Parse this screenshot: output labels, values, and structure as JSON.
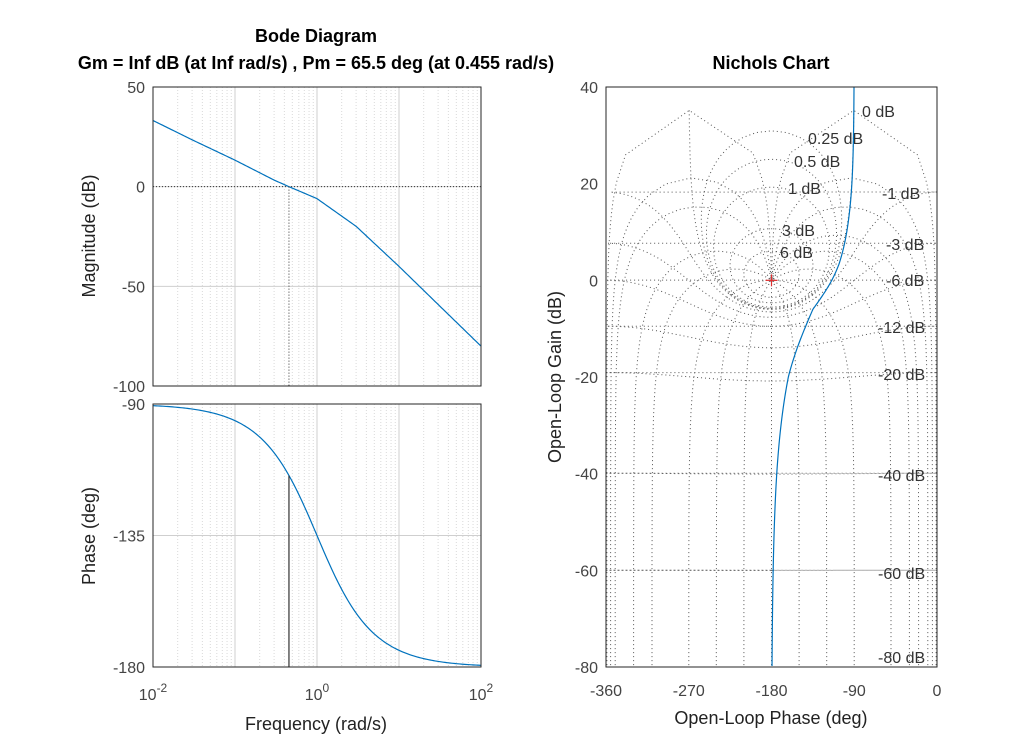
{
  "chart_data": [
    {
      "type": "line",
      "title": "Bode Diagram",
      "subtitle": "Gm = Inf dB (at Inf rad/s) ,  Pm = 65.5 deg (at 0.455 rad/s)",
      "xlabel": "Frequency  (rad/s)",
      "x_scale": "log",
      "xlim": [
        0.01,
        100
      ],
      "x_ticks": [
        {
          "base": "10",
          "exp": "-2"
        },
        {
          "base": "10",
          "exp": "0"
        },
        {
          "base": "10",
          "exp": "2"
        }
      ],
      "panels": [
        {
          "name": "magnitude",
          "ylabel": "Magnitude (dB)",
          "ylim": [
            -100,
            50
          ],
          "y_ticks": [
            "50",
            "0",
            "-50",
            "-100"
          ],
          "series": [
            {
              "values_x": [
                0.01,
                0.03,
                0.1,
                0.3,
                0.455,
                1,
                3,
                10,
                30,
                100
              ],
              "values_y": [
                33.2,
                23.5,
                13.3,
                3.3,
                0,
                -6.0,
                -19.9,
                -40.0,
                -59.1,
                -80.0
              ]
            }
          ]
        },
        {
          "name": "phase",
          "ylabel": "Phase (deg)",
          "ylim": [
            -180,
            -90
          ],
          "y_ticks": [
            "-90",
            "-135",
            "-180"
          ],
          "series": [
            {
              "values_x": [
                0.01,
                0.1,
                0.455,
                1,
                10,
                100
              ],
              "values_y": [
                -90.6,
                -95.7,
                -114.5,
                -135,
                -174.3,
                -179.4
              ]
            }
          ]
        }
      ],
      "crossover": {
        "frequency": 0.455,
        "phase": -114.5
      },
      "grid": true,
      "colors": {
        "curve": "#0072bd",
        "axes": "#262626"
      }
    },
    {
      "type": "line",
      "title": "Nichols Chart",
      "xlabel": "Open-Loop Phase (deg)",
      "ylabel": "Open-Loop Gain (dB)",
      "xlim": [
        -360,
        0
      ],
      "ylim": [
        -80,
        40
      ],
      "x_ticks": [
        "-360",
        "-270",
        "-180",
        "-90",
        "0"
      ],
      "y_ticks": [
        "40",
        "20",
        "0",
        "-20",
        "-40",
        "-60",
        "-80"
      ],
      "grid_labels": [
        "0 dB",
        "0.25 dB",
        "0.5 dB",
        "1 dB",
        "-1 dB",
        "3 dB",
        "6 dB",
        "-3 dB",
        "-6 dB",
        "-12 dB",
        "-20 dB",
        "-40 dB",
        "-60 dB",
        "-80 dB"
      ],
      "critical_point": {
        "x": -180,
        "y": 0
      },
      "grid": true,
      "colors": {
        "curve": "#0072bd",
        "marker": "#e03030"
      }
    }
  ]
}
